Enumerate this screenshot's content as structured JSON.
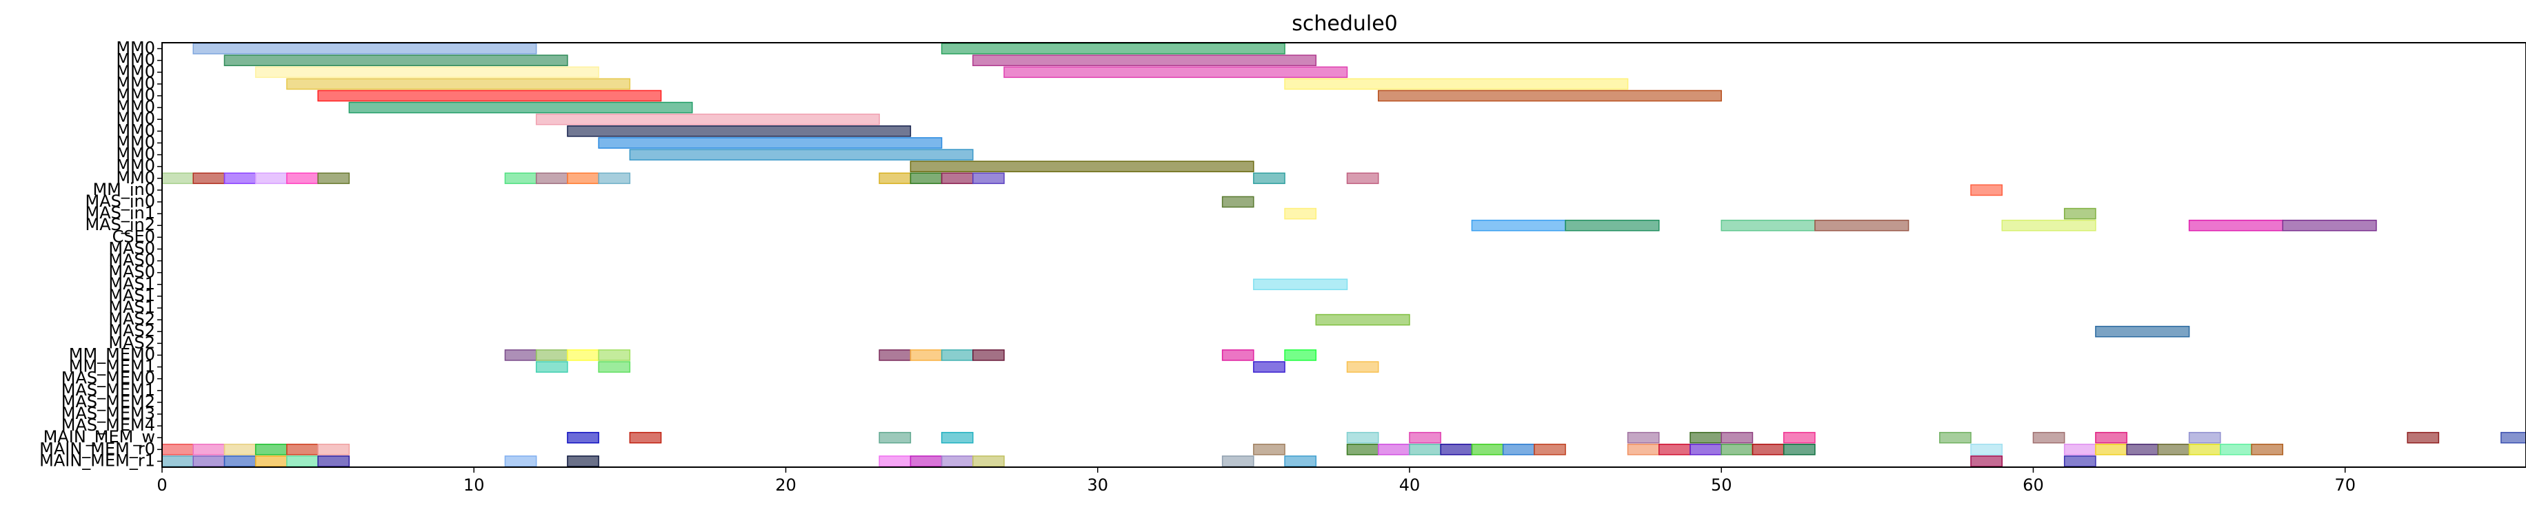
{
  "chart_data": {
    "type": "gantt",
    "title": "schedule0",
    "xlabel": "",
    "ylabel": "",
    "xlim": [
      0,
      75.8
    ],
    "x_ticks": [
      0,
      10,
      20,
      30,
      40,
      50,
      60,
      70
    ],
    "rows": [
      "MM0",
      "MM0",
      "MM0",
      "MM0",
      "MM0",
      "MM0",
      "MM0",
      "MM0",
      "MM0",
      "MM0",
      "MM0",
      "MM0",
      "MM_in0",
      "MAS_in0",
      "MAS_in1",
      "MAS_in2",
      "CSE0",
      "MAS0",
      "MAS0",
      "MAS0",
      "MAS1",
      "MAS1",
      "MAS1",
      "MAS2",
      "MAS2",
      "MAS2",
      "MM_MEM0",
      "MM_MEM1",
      "MAS_MEM0",
      "MAS_MEM1",
      "MAS_MEM2",
      "MAS_MEM3",
      "MAS_MEM4",
      "MAIN_MEM_w",
      "MAIN_MEM_r0",
      "MAIN_MEM_r1"
    ],
    "bars": [
      {
        "row": 0,
        "start": 1,
        "end": 12,
        "color": "#7fa6dd"
      },
      {
        "row": 0,
        "start": 25,
        "end": 36,
        "color": "#2ca25f"
      },
      {
        "row": 1,
        "start": 2,
        "end": 13,
        "color": "#2e8b57"
      },
      {
        "row": 1,
        "start": 26,
        "end": 37,
        "color": "#b03a8e"
      },
      {
        "row": 2,
        "start": 3,
        "end": 14,
        "color": "#fff2a0"
      },
      {
        "row": 2,
        "start": 27,
        "end": 38,
        "color": "#e040b0"
      },
      {
        "row": 3,
        "start": 4,
        "end": 15,
        "color": "#e6c84a"
      },
      {
        "row": 3,
        "start": 36,
        "end": 47,
        "color": "#fff27a"
      },
      {
        "row": 4,
        "start": 5,
        "end": 16,
        "color": "#ff2020"
      },
      {
        "row": 4,
        "start": 39,
        "end": 50,
        "color": "#b8501e"
      },
      {
        "row": 5,
        "start": 6,
        "end": 17,
        "color": "#229e68"
      },
      {
        "row": 6,
        "start": 12,
        "end": 23,
        "color": "#f0a0b0"
      },
      {
        "row": 7,
        "start": 13,
        "end": 24,
        "color": "#1a2550"
      },
      {
        "row": 8,
        "start": 14,
        "end": 25,
        "color": "#2a8ae0"
      },
      {
        "row": 9,
        "start": 15,
        "end": 26,
        "color": "#3a98c8"
      },
      {
        "row": 10,
        "start": 24,
        "end": 35,
        "color": "#6b6b12"
      },
      {
        "row": 11,
        "start": 0,
        "end": 1,
        "color": "#a8d08d"
      },
      {
        "row": 11,
        "start": 1,
        "end": 2,
        "color": "#b03020"
      },
      {
        "row": 11,
        "start": 2,
        "end": 3,
        "color": "#8a40ff"
      },
      {
        "row": 11,
        "start": 3,
        "end": 4,
        "color": "#d8a0ff"
      },
      {
        "row": 11,
        "start": 4,
        "end": 5,
        "color": "#ff40c0"
      },
      {
        "row": 11,
        "start": 5,
        "end": 6,
        "color": "#6a7a30"
      },
      {
        "row": 11,
        "start": 11,
        "end": 12,
        "color": "#50e080"
      },
      {
        "row": 11,
        "start": 12,
        "end": 13,
        "color": "#a07080"
      },
      {
        "row": 11,
        "start": 13,
        "end": 14,
        "color": "#ff7a30"
      },
      {
        "row": 11,
        "start": 14,
        "end": 15,
        "color": "#70b0c8"
      },
      {
        "row": 11,
        "start": 23,
        "end": 24,
        "color": "#d8b020"
      },
      {
        "row": 11,
        "start": 24,
        "end": 25,
        "color": "#307a20"
      },
      {
        "row": 11,
        "start": 25,
        "end": 26,
        "color": "#8a2050"
      },
      {
        "row": 11,
        "start": 26,
        "end": 27,
        "color": "#5a40c0"
      },
      {
        "row": 11,
        "start": 35,
        "end": 36,
        "color": "#30a0a0"
      },
      {
        "row": 11,
        "start": 38,
        "end": 39,
        "color": "#c06080"
      },
      {
        "row": 12,
        "start": 58,
        "end": 59,
        "color": "#ff6040"
      },
      {
        "row": 13,
        "start": 34,
        "end": 35,
        "color": "#5a7a30"
      },
      {
        "row": 14,
        "start": 36,
        "end": 37,
        "color": "#fff07a"
      },
      {
        "row": 14,
        "start": 61,
        "end": 62,
        "color": "#80b040"
      },
      {
        "row": 15,
        "start": 42,
        "end": 45,
        "color": "#3aa0f0"
      },
      {
        "row": 15,
        "start": 45,
        "end": 48,
        "color": "#229060"
      },
      {
        "row": 15,
        "start": 50,
        "end": 53,
        "color": "#60c890"
      },
      {
        "row": 15,
        "start": 53,
        "end": 56,
        "color": "#9a5a4a"
      },
      {
        "row": 15,
        "start": 59,
        "end": 62,
        "color": "#d8f070"
      },
      {
        "row": 15,
        "start": 65,
        "end": 68,
        "color": "#e020b0"
      },
      {
        "row": 15,
        "start": 68,
        "end": 71,
        "color": "#7a3090"
      },
      {
        "row": 20,
        "start": 35,
        "end": 38,
        "color": "#80e0f0"
      },
      {
        "row": 23,
        "start": 37,
        "end": 40,
        "color": "#80c040"
      },
      {
        "row": 24,
        "start": 62,
        "end": 65,
        "color": "#2a6aa0"
      },
      {
        "row": 26,
        "start": 11,
        "end": 12,
        "color": "#7a4a8a"
      },
      {
        "row": 26,
        "start": 12,
        "end": 13,
        "color": "#90c060"
      },
      {
        "row": 26,
        "start": 13,
        "end": 14,
        "color": "#ffff40"
      },
      {
        "row": 26,
        "start": 14,
        "end": 15,
        "color": "#a0e060"
      },
      {
        "row": 26,
        "start": 23,
        "end": 24,
        "color": "#7a2a5a"
      },
      {
        "row": 26,
        "start": 24,
        "end": 25,
        "color": "#f8b040"
      },
      {
        "row": 26,
        "start": 25,
        "end": 26,
        "color": "#40b0b0"
      },
      {
        "row": 26,
        "start": 26,
        "end": 27,
        "color": "#6a1a3a"
      },
      {
        "row": 26,
        "start": 34,
        "end": 35,
        "color": "#e020a0"
      },
      {
        "row": 26,
        "start": 36,
        "end": 37,
        "color": "#20ff40"
      },
      {
        "row": 27,
        "start": 12,
        "end": 13,
        "color": "#40d0b0"
      },
      {
        "row": 27,
        "start": 14,
        "end": 15,
        "color": "#60e060"
      },
      {
        "row": 27,
        "start": 35,
        "end": 36,
        "color": "#3a20d0"
      },
      {
        "row": 27,
        "start": 38,
        "end": 39,
        "color": "#f8c050"
      },
      {
        "row": 33,
        "start": 13,
        "end": 14,
        "color": "#1010c0"
      },
      {
        "row": 33,
        "start": 15,
        "end": 16,
        "color": "#c02010"
      },
      {
        "row": 33,
        "start": 23,
        "end": 24,
        "color": "#60a890"
      },
      {
        "row": 33,
        "start": 25,
        "end": 26,
        "color": "#20b0c0"
      },
      {
        "row": 33,
        "start": 38,
        "end": 39,
        "color": "#80d0d0"
      },
      {
        "row": 33,
        "start": 40,
        "end": 41,
        "color": "#e040b0"
      },
      {
        "row": 33,
        "start": 47,
        "end": 48,
        "color": "#a070a0"
      },
      {
        "row": 33,
        "start": 49,
        "end": 50,
        "color": "#3a6a20"
      },
      {
        "row": 33,
        "start": 50,
        "end": 51,
        "color": "#904080"
      },
      {
        "row": 33,
        "start": 52,
        "end": 53,
        "color": "#f03090"
      },
      {
        "row": 33,
        "start": 57,
        "end": 58,
        "color": "#70b060"
      },
      {
        "row": 33,
        "start": 60,
        "end": 61,
        "color": "#a07070"
      },
      {
        "row": 33,
        "start": 62,
        "end": 63,
        "color": "#e02080"
      },
      {
        "row": 33,
        "start": 65,
        "end": 66,
        "color": "#9090d0"
      },
      {
        "row": 33,
        "start": 72,
        "end": 73,
        "color": "#902020"
      },
      {
        "row": 33,
        "start": 75,
        "end": 76,
        "color": "#3a50b0"
      },
      {
        "row": 34,
        "start": 0,
        "end": 1,
        "color": "#f05050"
      },
      {
        "row": 34,
        "start": 1,
        "end": 2,
        "color": "#f070c0"
      },
      {
        "row": 34,
        "start": 2,
        "end": 3,
        "color": "#e8d080"
      },
      {
        "row": 34,
        "start": 3,
        "end": 4,
        "color": "#20c030"
      },
      {
        "row": 34,
        "start": 4,
        "end": 5,
        "color": "#d04020"
      },
      {
        "row": 34,
        "start": 5,
        "end": 6,
        "color": "#f0a0a0"
      },
      {
        "row": 34,
        "start": 35,
        "end": 36,
        "color": "#a08060"
      },
      {
        "row": 34,
        "start": 38,
        "end": 39,
        "color": "#3a7a20"
      },
      {
        "row": 34,
        "start": 39,
        "end": 40,
        "color": "#d050e0"
      },
      {
        "row": 34,
        "start": 40,
        "end": 41,
        "color": "#60c0b0"
      },
      {
        "row": 34,
        "start": 41,
        "end": 42,
        "color": "#2010a0"
      },
      {
        "row": 34,
        "start": 42,
        "end": 43,
        "color": "#40d020"
      },
      {
        "row": 34,
        "start": 43,
        "end": 44,
        "color": "#2a7ad0"
      },
      {
        "row": 34,
        "start": 44,
        "end": 45,
        "color": "#c04020"
      },
      {
        "row": 34,
        "start": 47,
        "end": 48,
        "color": "#f09060"
      },
      {
        "row": 34,
        "start": 48,
        "end": 49,
        "color": "#d01030"
      },
      {
        "row": 34,
        "start": 49,
        "end": 50,
        "color": "#6020d0"
      },
      {
        "row": 34,
        "start": 50,
        "end": 51,
        "color": "#50a050"
      },
      {
        "row": 34,
        "start": 51,
        "end": 52,
        "color": "#b01010"
      },
      {
        "row": 34,
        "start": 52,
        "end": 53,
        "color": "#107040"
      },
      {
        "row": 34,
        "start": 58,
        "end": 59,
        "color": "#a0e0f0"
      },
      {
        "row": 34,
        "start": 61,
        "end": 62,
        "color": "#e090f0"
      },
      {
        "row": 34,
        "start": 62,
        "end": 63,
        "color": "#f0d020"
      },
      {
        "row": 34,
        "start": 63,
        "end": 64,
        "color": "#4a2a70"
      },
      {
        "row": 34,
        "start": 64,
        "end": 65,
        "color": "#6a6a30"
      },
      {
        "row": 34,
        "start": 65,
        "end": 66,
        "color": "#e0e020"
      },
      {
        "row": 34,
        "start": 66,
        "end": 67,
        "color": "#60f0a0"
      },
      {
        "row": 34,
        "start": 67,
        "end": 68,
        "color": "#b06020"
      },
      {
        "row": 35,
        "start": 0,
        "end": 1,
        "color": "#60a8c0"
      },
      {
        "row": 35,
        "start": 1,
        "end": 2,
        "color": "#8060c0"
      },
      {
        "row": 35,
        "start": 2,
        "end": 3,
        "color": "#3060c0"
      },
      {
        "row": 35,
        "start": 3,
        "end": 4,
        "color": "#f0b020"
      },
      {
        "row": 35,
        "start": 4,
        "end": 5,
        "color": "#60e0a0"
      },
      {
        "row": 35,
        "start": 5,
        "end": 6,
        "color": "#3020a0"
      },
      {
        "row": 35,
        "start": 11,
        "end": 12,
        "color": "#80b0f0"
      },
      {
        "row": 35,
        "start": 13,
        "end": 14,
        "color": "#101a40"
      },
      {
        "row": 35,
        "start": 23,
        "end": 24,
        "color": "#f070f0"
      },
      {
        "row": 35,
        "start": 24,
        "end": 25,
        "color": "#c020c0"
      },
      {
        "row": 35,
        "start": 25,
        "end": 26,
        "color": "#a080d0"
      },
      {
        "row": 35,
        "start": 26,
        "end": 27,
        "color": "#c0c060"
      },
      {
        "row": 35,
        "start": 34,
        "end": 35,
        "color": "#90a0b0"
      },
      {
        "row": 35,
        "start": 36,
        "end": 37,
        "color": "#40a0d0"
      },
      {
        "row": 35,
        "start": 58,
        "end": 59,
        "color": "#a01050"
      },
      {
        "row": 35,
        "start": 61,
        "end": 62,
        "color": "#3a30b0"
      }
    ]
  }
}
